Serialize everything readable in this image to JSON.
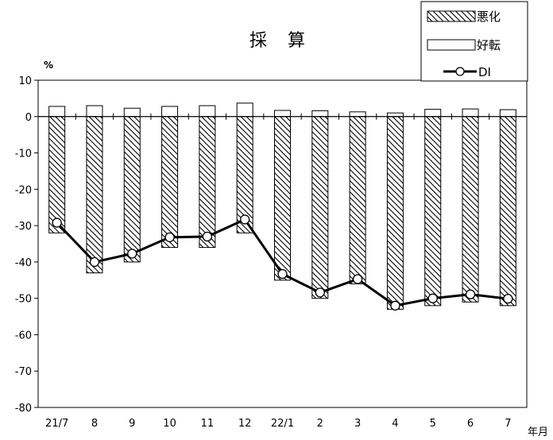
{
  "chart_data": {
    "type": "bar",
    "title": "採　算",
    "ylabel": "%",
    "xlabel": "年月",
    "ylim": [
      -80,
      10
    ],
    "yticks": [
      10,
      0,
      -10,
      -20,
      -30,
      -40,
      -50,
      -60,
      -70,
      -80
    ],
    "categories": [
      "21/7",
      "8",
      "9",
      "10",
      "11",
      "12",
      "22/1",
      "2",
      "3",
      "4",
      "5",
      "6",
      "7"
    ],
    "series": [
      {
        "name": "悪化",
        "kind": "bar-hatched",
        "values": [
          -32,
          -43,
          -40,
          -36,
          -36,
          -32,
          -45,
          -50,
          -46,
          -53,
          -52,
          -51,
          -52
        ]
      },
      {
        "name": "好転",
        "kind": "bar-white",
        "values": [
          2.8,
          3.0,
          2.3,
          2.8,
          3.0,
          3.7,
          1.7,
          1.6,
          1.3,
          1.0,
          2.0,
          2.1,
          1.9
        ]
      },
      {
        "name": "DI",
        "kind": "line-marker",
        "values": [
          -29.2,
          -40.0,
          -37.7,
          -33.2,
          -33.0,
          -28.3,
          -43.3,
          -48.4,
          -44.7,
          -52.0,
          -50.0,
          -48.9,
          -50.1
        ]
      }
    ],
    "legend_position": "top-right",
    "grid": false,
    "colors": {
      "axis": "#000000",
      "bar_fill": "#ffffff",
      "line": "#000000"
    }
  }
}
